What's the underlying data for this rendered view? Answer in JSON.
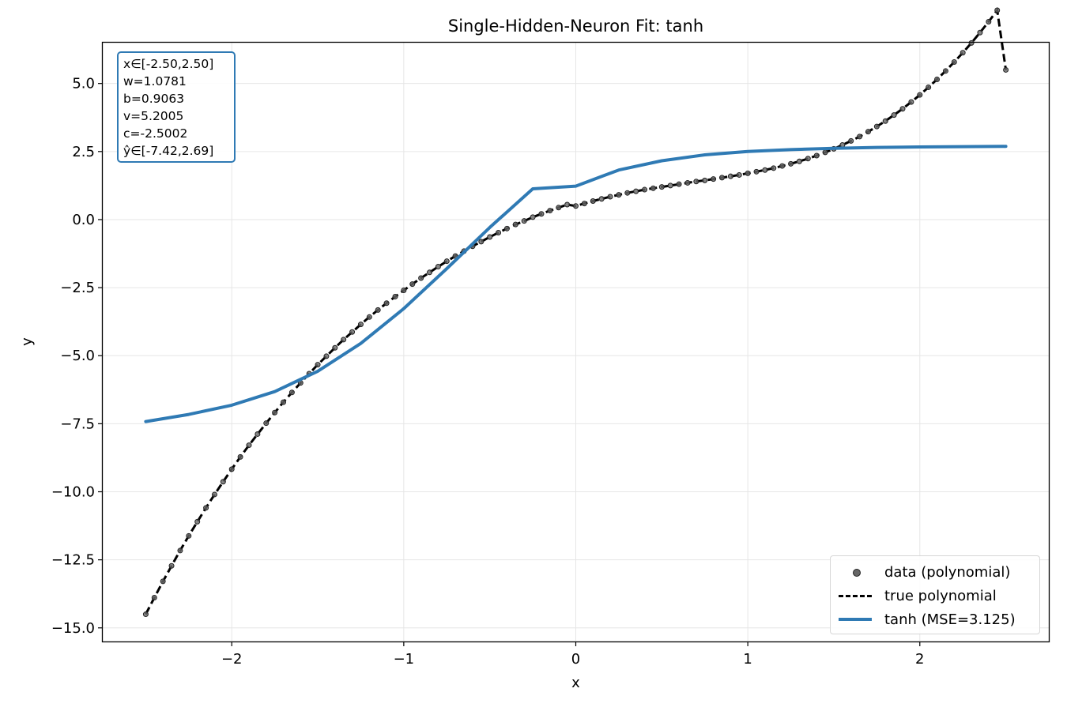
{
  "chart_data": {
    "type": "line",
    "title": "Single-Hidden-Neuron Fit: tanh",
    "xlabel": "x",
    "ylabel": "y",
    "xlim": [
      -2.75,
      2.75
    ],
    "ylim": [
      -15.5,
      6.5
    ],
    "grid": true,
    "xticks": [
      -2,
      -1,
      0,
      1,
      2
    ],
    "xtick_labels": [
      "−2",
      "−1",
      "0",
      "1",
      "2"
    ],
    "yticks": [
      5.0,
      2.5,
      0.0,
      -2.5,
      -5.0,
      -7.5,
      -10.0,
      -12.5,
      -15.0
    ],
    "ytick_labels": [
      "5.0",
      "2.5",
      "0.0",
      "−2.5",
      "−5.0",
      "−7.5",
      "−10.0",
      "−12.5",
      "−15.0"
    ],
    "legend_position": "lower-right",
    "series": [
      {
        "name": "data (polynomial)",
        "kind": "scatter",
        "color": "#666666",
        "x": [
          -2.5,
          -2.45,
          -2.4,
          -2.35,
          -2.3,
          -2.25,
          -2.2,
          -2.15,
          -2.1,
          -2.05,
          -2.0,
          -1.95,
          -1.9,
          -1.85,
          -1.8,
          -1.75,
          -1.7,
          -1.65,
          -1.6,
          -1.55,
          -1.5,
          -1.45,
          -1.4,
          -1.35,
          -1.3,
          -1.25,
          -1.2,
          -1.15,
          -1.1,
          -1.05,
          -1.0,
          -0.95,
          -0.9,
          -0.85,
          -0.8,
          -0.75,
          -0.7,
          -0.65,
          -0.6,
          -0.55,
          -0.5,
          -0.45,
          -0.4,
          -0.35,
          -0.3,
          -0.25,
          -0.2,
          -0.15,
          -0.1,
          -0.05,
          0.0,
          0.05,
          0.1,
          0.15,
          0.2,
          0.25,
          0.3,
          0.35,
          0.4,
          0.45,
          0.5,
          0.55,
          0.6,
          0.65,
          0.7,
          0.75,
          0.8,
          0.85,
          0.9,
          0.95,
          1.0,
          1.05,
          1.1,
          1.15,
          1.2,
          1.25,
          1.3,
          1.35,
          1.4,
          1.45,
          1.5,
          1.55,
          1.6,
          1.65,
          1.7,
          1.75,
          1.8,
          1.85,
          1.9,
          1.95,
          2.0,
          2.05,
          2.1,
          2.15,
          2.2,
          2.25,
          2.3,
          2.35,
          2.4,
          2.45,
          2.5
        ],
        "y": [
          -14.5,
          -13.89,
          -13.29,
          -12.72,
          -12.16,
          -11.62,
          -11.1,
          -10.59,
          -10.1,
          -9.63,
          -9.17,
          -8.72,
          -8.29,
          -7.88,
          -7.48,
          -7.09,
          -6.71,
          -6.35,
          -6.0,
          -5.66,
          -5.33,
          -5.02,
          -4.71,
          -4.41,
          -4.13,
          -3.85,
          -3.58,
          -3.32,
          -3.07,
          -2.83,
          -2.6,
          -2.37,
          -2.15,
          -1.94,
          -1.73,
          -1.53,
          -1.34,
          -1.16,
          -0.98,
          -0.81,
          -0.64,
          -0.48,
          -0.33,
          -0.18,
          -0.05,
          0.09,
          0.21,
          0.33,
          0.44,
          0.55,
          0.5,
          0.59,
          0.68,
          0.76,
          0.84,
          0.91,
          0.98,
          1.04,
          1.1,
          1.15,
          1.2,
          1.25,
          1.3,
          1.35,
          1.4,
          1.44,
          1.49,
          1.54,
          1.59,
          1.64,
          1.7,
          1.76,
          1.82,
          1.89,
          1.97,
          2.05,
          2.14,
          2.24,
          2.35,
          2.47,
          2.6,
          2.74,
          2.89,
          3.05,
          3.23,
          3.42,
          3.62,
          3.84,
          4.07,
          4.32,
          4.58,
          4.86,
          5.15,
          5.46,
          5.79,
          6.13,
          6.49,
          6.87,
          7.27,
          7.69,
          5.5
        ]
      },
      {
        "name": "true polynomial",
        "kind": "line",
        "style": "dashed",
        "color": "#000000"
      },
      {
        "name": "tanh (MSE=3.125)",
        "kind": "line",
        "color": "#2f7ab4",
        "x": [
          -2.5,
          -2.25,
          -2.0,
          -1.75,
          -1.5,
          -1.25,
          -1.0,
          -0.75,
          -0.5,
          -0.25,
          0.0,
          0.25,
          0.5,
          0.75,
          1.0,
          1.25,
          1.5,
          1.75,
          2.0,
          2.25,
          2.5
        ],
        "y": [
          -7.42,
          -7.16,
          -6.82,
          -6.32,
          -5.57,
          -4.55,
          -3.27,
          -1.8,
          -0.29,
          1.13,
          1.23,
          1.82,
          2.16,
          2.38,
          2.5,
          2.57,
          2.62,
          2.65,
          2.67,
          2.68,
          2.69
        ]
      }
    ],
    "annotation_lines": [
      "x∈[-2.50,2.50]",
      "w=1.0781",
      "b=0.9063",
      "v=5.2005",
      "c=-2.5002",
      "ŷ∈[-7.42,2.69]"
    ]
  },
  "colors": {
    "tanh_line": "#2f7ab4",
    "data_points": "#666666",
    "true_polynomial": "#000000",
    "grid": "#e6e6e6"
  }
}
